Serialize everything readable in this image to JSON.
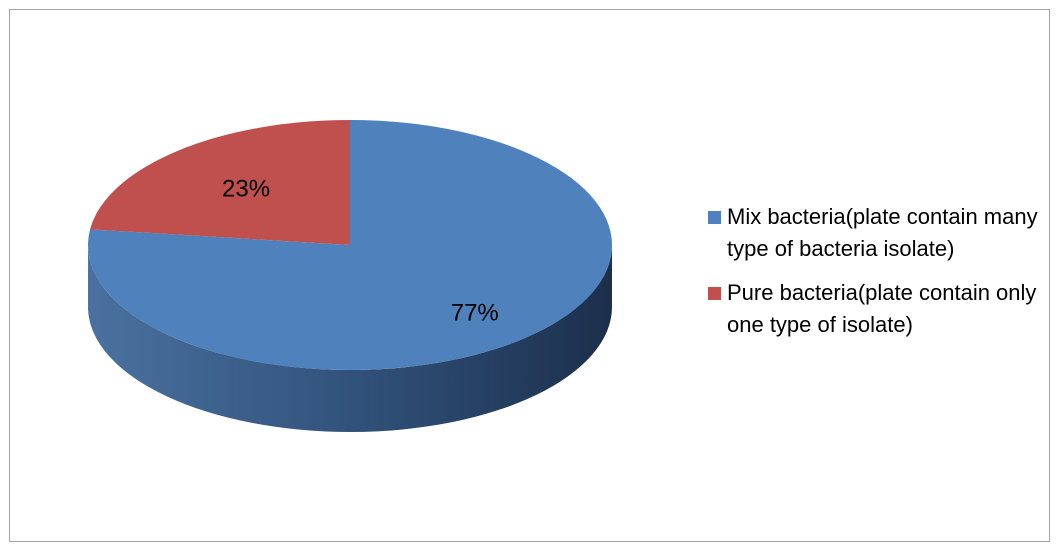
{
  "chart_data": {
    "type": "pie",
    "style": "3d",
    "title": "",
    "slices": [
      {
        "label": "Mix bacteria(plate contain many type of bacteria isolate)",
        "value": 77,
        "data_label": "77%",
        "color": "#4f81bd"
      },
      {
        "label": "Pure bacteria(plate contain only one type of isolate)",
        "value": 23,
        "data_label": "23%",
        "color": "#c0504d"
      }
    ],
    "legend_position": "right"
  }
}
